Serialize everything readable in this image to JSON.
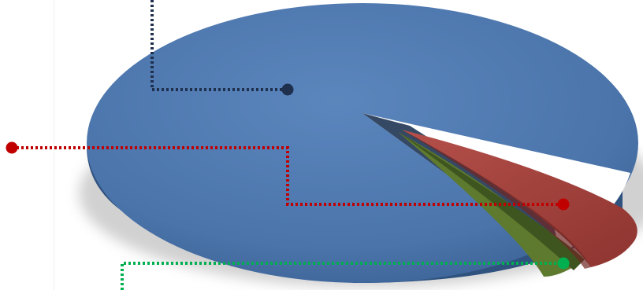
{
  "chart_data": {
    "type": "pie",
    "style": "3d-exploded",
    "legend": "none",
    "slices": [
      {
        "value": 91,
        "color": "#4a74aa"
      },
      {
        "value": 6,
        "color": "#a9443e"
      },
      {
        "value": 3,
        "color": "#5e7a2e"
      }
    ],
    "callouts": [
      {
        "slice": 0,
        "color": "#1f2f4e"
      },
      {
        "slice": 1,
        "color": "#c00000"
      },
      {
        "slice": 2,
        "color": "#00b050"
      }
    ]
  }
}
